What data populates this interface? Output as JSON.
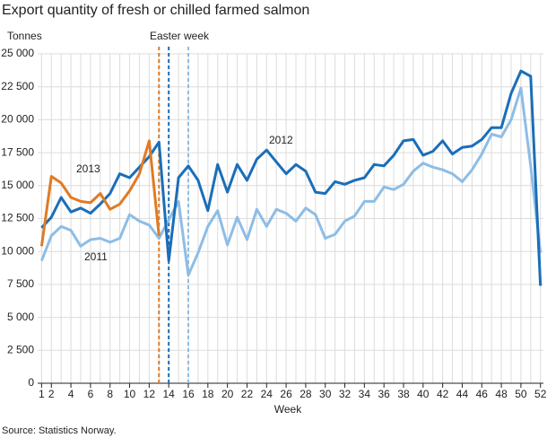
{
  "chart_data": {
    "type": "line",
    "title": "Export quantity of fresh or chilled farmed salmon",
    "ylabel": "Tonnes",
    "xlabel": "Week",
    "source": "Source: Statistics Norway.",
    "annotation": "Easter week",
    "x": [
      1,
      2,
      3,
      4,
      5,
      6,
      7,
      8,
      9,
      10,
      11,
      12,
      13,
      14,
      15,
      16,
      17,
      18,
      19,
      20,
      21,
      22,
      23,
      24,
      25,
      26,
      27,
      28,
      29,
      30,
      31,
      32,
      33,
      34,
      35,
      36,
      37,
      38,
      39,
      40,
      41,
      42,
      43,
      44,
      45,
      46,
      47,
      48,
      49,
      50,
      51,
      52
    ],
    "xlim": [
      0.6,
      52.3
    ],
    "xticks": [
      1,
      2,
      4,
      6,
      8,
      10,
      12,
      14,
      16,
      18,
      20,
      22,
      24,
      26,
      28,
      30,
      32,
      34,
      36,
      38,
      40,
      42,
      44,
      46,
      48,
      50,
      52
    ],
    "xgrid": [
      1,
      2,
      3,
      4,
      5,
      6,
      7,
      8,
      9,
      10,
      11,
      12,
      13,
      14,
      15,
      16,
      17,
      18,
      19,
      20,
      21,
      22,
      23,
      24,
      25,
      26,
      27,
      28,
      29,
      30,
      31,
      32,
      33,
      34,
      35,
      36,
      37,
      38,
      39,
      40,
      41,
      42,
      43,
      44,
      45,
      46,
      47,
      48,
      49,
      50,
      51,
      52
    ],
    "ylim": [
      0,
      25000
    ],
    "yticks": [
      0,
      {
        "value": 2500,
        "label": "2 500"
      },
      {
        "value": 5000,
        "label": "5 000"
      },
      {
        "value": 7500,
        "label": "7 500"
      },
      {
        "value": 10000,
        "label": "10 000"
      },
      {
        "value": 12500,
        "label": "12 500"
      },
      {
        "value": 15000,
        "label": "15 000"
      },
      {
        "value": 17500,
        "label": "17 500"
      },
      {
        "value": 20000,
        "label": "20 000"
      },
      {
        "value": 22500,
        "label": "22 500"
      },
      {
        "value": 25000,
        "label": "25 000"
      }
    ],
    "grid": true,
    "markers": [
      {
        "x": 13,
        "color": "#e07a24"
      },
      {
        "x": 14,
        "color": "#1a6eb8"
      },
      {
        "x": 16,
        "color": "#8dbde6"
      }
    ],
    "series": [
      {
        "name": "2011",
        "color": "#8dbde6",
        "values": [
          9300,
          11200,
          11900,
          11600,
          10400,
          10900,
          11000,
          10700,
          11000,
          12800,
          12300,
          12000,
          11000,
          12400,
          13800,
          8200,
          9900,
          11900,
          13100,
          10500,
          12600,
          10900,
          13200,
          11900,
          13200,
          12900,
          12300,
          13300,
          12800,
          11000,
          11300,
          12300,
          12700,
          13800,
          13800,
          14900,
          14700,
          15100,
          16100,
          16700,
          16400,
          16200,
          15900,
          15300,
          16200,
          17400,
          18900,
          18700,
          20000,
          22400,
          16500,
          9900
        ]
      },
      {
        "name": "2012",
        "color": "#1a6eb8",
        "values": [
          11800,
          12600,
          14100,
          13000,
          13300,
          12900,
          13600,
          14400,
          15900,
          15600,
          16400,
          17200,
          18300,
          9300,
          15600,
          16500,
          15400,
          13100,
          16600,
          14500,
          16600,
          15400,
          17000,
          17700,
          16800,
          15900,
          16600,
          16100,
          14500,
          14400,
          15300,
          15100,
          15400,
          15600,
          16600,
          16500,
          17300,
          18400,
          18500,
          17300,
          17600,
          18400,
          17400,
          17900,
          18000,
          18500,
          19400,
          19400,
          22000,
          23700,
          23300,
          7400
        ]
      },
      {
        "name": "2013",
        "color": "#e07a24",
        "values": [
          10400,
          15700,
          15200,
          14100,
          13800,
          13700,
          14400,
          13200,
          13600,
          14600,
          15900,
          18400,
          11200,
          null,
          null,
          null,
          null,
          null,
          null,
          null,
          null,
          null,
          null,
          null,
          null,
          null,
          null,
          null,
          null,
          null,
          null,
          null,
          null,
          null,
          null,
          null,
          null,
          null,
          null,
          null,
          null,
          null,
          null,
          null,
          null,
          null,
          null,
          null,
          null,
          null,
          null,
          null
        ]
      }
    ]
  }
}
